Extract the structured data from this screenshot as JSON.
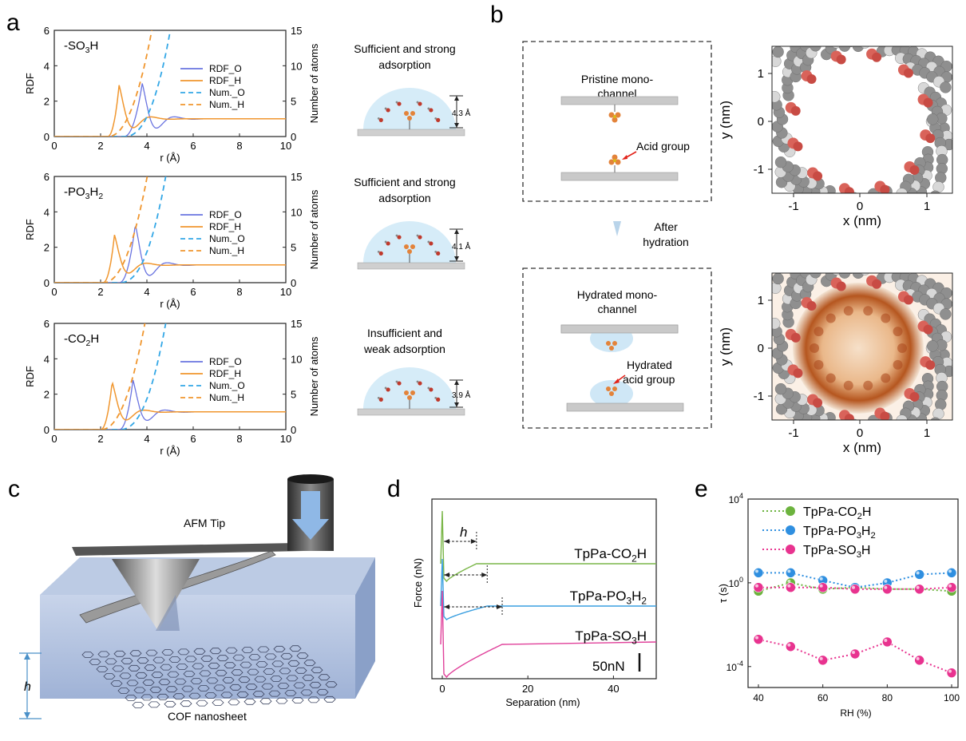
{
  "panels": {
    "a": "a",
    "b": "b",
    "c": "c",
    "d": "d",
    "e": "e"
  },
  "panel_a": {
    "plots": [
      {
        "label_main": "-SO",
        "sub1": "3",
        "tail": "H",
        "sub2": "",
        "tail2": ""
      },
      {
        "label_main": "-PO",
        "sub1": "3",
        "tail": "H",
        "sub2": "2",
        "tail2": ""
      },
      {
        "label_main": "-CO",
        "sub1": "2",
        "tail": "H",
        "sub2": "",
        "tail2": ""
      }
    ],
    "legend": [
      "RDF_O",
      "RDF_H",
      "Num._O",
      "Num._H"
    ],
    "y_left_label": "RDF",
    "y_right_label": "Number of atoms",
    "x_label": "r (Å)",
    "x_ticks": [
      "0",
      "2",
      "4",
      "6",
      "8",
      "10"
    ],
    "y_left_ticks": [
      "0",
      "2",
      "4",
      "6"
    ],
    "y_right_ticks": [
      "0",
      "5",
      "10",
      "15"
    ],
    "schematics": [
      {
        "line1": "Sufficient and strong",
        "line2": "adsorption",
        "dist": "4.3 Å"
      },
      {
        "line1": "Sufficient and strong",
        "line2": "adsorption",
        "dist": "4.1 Å"
      },
      {
        "line1": "Insufficient and",
        "line2": "weak adsorption",
        "dist": "3.9 Å"
      }
    ]
  },
  "panel_b": {
    "top_box_title1": "Pristine mono-",
    "top_box_title2": "channel",
    "acid_label": "Acid group",
    "arrow_line1": "After",
    "arrow_line2": "hydration",
    "bottom_box_title1": "Hydrated mono-",
    "bottom_box_title2": "channel",
    "hyd_acid1": "Hydrated",
    "hyd_acid2": "acid group",
    "x_label": "x (nm)",
    "y_label": "y (nm)",
    "x_ticks": [
      "-1",
      "0",
      "1"
    ],
    "y_ticks": [
      "1",
      "0",
      "-1"
    ]
  },
  "panel_c": {
    "tip_label": "AFM Tip",
    "height_label": "h",
    "sheet_label": "COF nanosheet"
  },
  "panel_d": {
    "y_label": "Force (nN)",
    "x_label": "Separation (nm)",
    "x_ticks": [
      "0",
      "20",
      "40"
    ],
    "h_label": "h",
    "scale_label": "50nN",
    "series": [
      {
        "name_main": "TpPa-CO",
        "sub": "2",
        "tail": "H",
        "sub2": "",
        "color": "#7ab648"
      },
      {
        "name_main": "TpPa-PO",
        "sub": "3",
        "tail": "H",
        "sub2": "2",
        "color": "#3a9fe0"
      },
      {
        "name_main": "TpPa-SO",
        "sub": "3",
        "tail": "H",
        "sub2": "",
        "color": "#e0409a"
      }
    ]
  },
  "panel_e": {
    "y_label": "τ (s)",
    "x_label": "RH (%)",
    "x_ticks": [
      "40",
      "60",
      "80",
      "100"
    ],
    "y_ticks": [
      "10",
      "10",
      "10"
    ],
    "y_exps": [
      "4",
      "0",
      "-4"
    ]
  },
  "chart_data": [
    {
      "type": "line",
      "x": [
        40,
        50,
        60,
        70,
        80,
        90,
        100
      ],
      "xlabel": "RH (%)",
      "ylabel": "τ (s)",
      "yscale": "log",
      "ylim": [
        1e-05,
        10000
      ],
      "series": [
        {
          "name": "TpPa-CO2H",
          "color": "#6cb33e",
          "values": [
            0.4,
            1.0,
            0.5,
            0.6,
            0.5,
            0.5,
            0.4
          ]
        },
        {
          "name": "TpPa-PO3H2",
          "color": "#2f8fe0",
          "values": [
            3.0,
            3.0,
            1.3,
            0.6,
            1.0,
            2.5,
            3.0
          ]
        },
        {
          "name": "TpPa-SO3H",
          "color": "#e8338f",
          "values": [
            0.6,
            0.6,
            0.6,
            0.5,
            0.5,
            0.5,
            0.6
          ]
        },
        {
          "name": "",
          "color": "#e8338f",
          "values": [
            0.002,
            0.0009,
            0.0002,
            0.0004,
            0.0015,
            0.0002,
            5e-05
          ]
        }
      ],
      "legend_position": "top-left"
    }
  ]
}
